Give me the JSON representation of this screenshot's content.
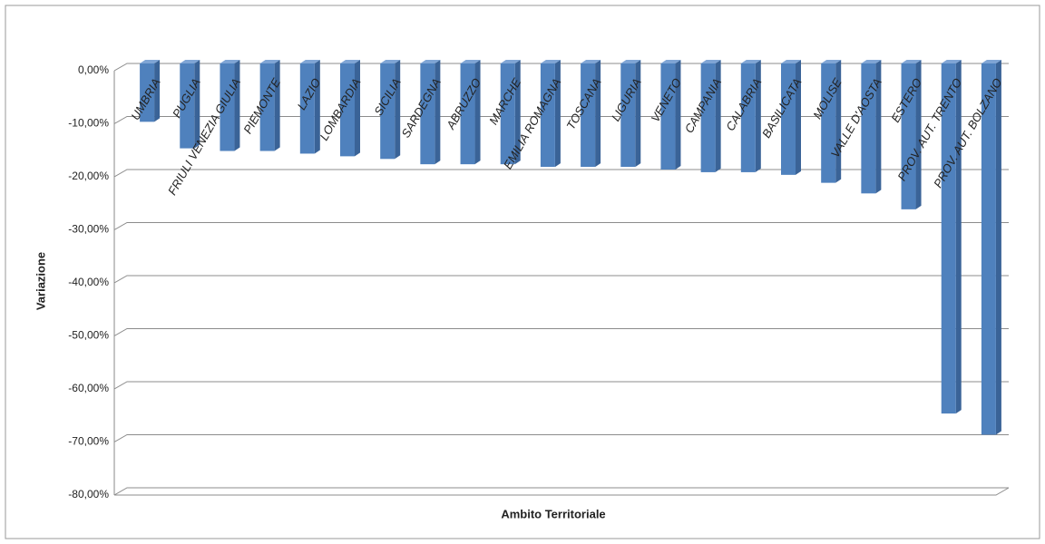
{
  "chart_data": {
    "type": "bar",
    "x_label": "Ambito Territoriale",
    "y_label": "Variazione",
    "categories": [
      "UMBRIA",
      "PUGLIA",
      "FRIULI VENEZIA GIULIA",
      "PIEMONTE",
      "LAZIO",
      "LOMBARDIA",
      "SICILIA",
      "SARDEGNA",
      "ABRUZZO",
      "MARCHE",
      "EMILIA ROMAGNA",
      "TOSCANA",
      "LIGURIA",
      "VENETO",
      "CAMPANIA",
      "CALABRIA",
      "BASILICATA",
      "MOLISE",
      "VALLE D'AOSTA",
      "ESTERO",
      "PROV. AUT. TRENTO",
      "PROV. AUT. BOLZANO"
    ],
    "values": [
      -11,
      -16,
      -16.5,
      -16.5,
      -17,
      -17.5,
      -18,
      -19,
      -19,
      -19,
      -19.5,
      -19.5,
      -19.5,
      -20,
      -20.5,
      -20.5,
      -21,
      -22.5,
      -24.5,
      -27.5,
      -66,
      -70
    ],
    "color": "#4f81bd",
    "ylim": [
      -80,
      0
    ],
    "yticks": [
      {
        "value": 0,
        "label": "0,00%"
      },
      {
        "value": -10,
        "label": "-10,00%"
      },
      {
        "value": -20,
        "label": "-20,00%"
      },
      {
        "value": -30,
        "label": "-30,00%"
      },
      {
        "value": -40,
        "label": "-40,00%"
      },
      {
        "value": -50,
        "label": "-50,00%"
      },
      {
        "value": -60,
        "label": "-60,00%"
      },
      {
        "value": -70,
        "label": "-70,00%"
      },
      {
        "value": -80,
        "label": "-80,00%"
      }
    ],
    "grid": true
  }
}
